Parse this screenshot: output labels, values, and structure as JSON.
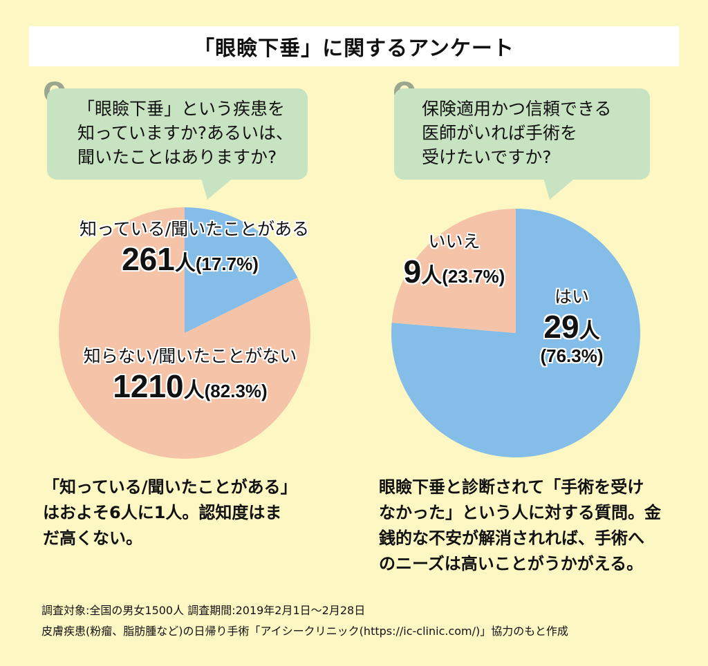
{
  "title": "「眼瞼下垂」に関するアンケート",
  "q_mark": "Q",
  "colors": {
    "pink": "#f5c4a8",
    "blue": "#84bde8",
    "bubble": "#c8e3c2",
    "background": "#fdf7c4"
  },
  "left": {
    "question": "「眼瞼下垂」という疾患を\n知っていますか?あるいは、\n聞いたことはありますか?",
    "answer_yes": {
      "caption": "知っている/聞いたことがある",
      "count": "261",
      "unit": "人",
      "percent": "(17.7%)"
    },
    "answer_no": {
      "caption": "知らない/聞いたことがない",
      "count": "1210",
      "unit": "人",
      "percent": "(82.3%)"
    },
    "note": "「知っている/聞いたことがある」\nはおよそ6人に1人。認知度はま\nだ高くない。"
  },
  "right": {
    "question": "保険適用かつ信頼できる\n医師がいれば手術を\n受けたいですか?",
    "answer_no": {
      "caption": "いいえ",
      "count": "9",
      "unit": "人",
      "percent": "(23.7%)"
    },
    "answer_yes": {
      "caption": "はい",
      "count": "29",
      "unit": "人",
      "percent": "(76.3%)"
    },
    "note": "眼瞼下垂と診断されて「手術を受け\nなかった」という人に対する質問。金\n銭的な不安が解消されれば、手術へ\nのニーズは高いことがうかがえる。"
  },
  "footer": {
    "line1": "調査対象:全国の男女1500人  調査期間:2019年2月1日〜2月28日",
    "line2": "皮膚疾患(粉瘤、脂肪腫など)の日帰り手術「アイシークリニック(https://ic-clinic.com/)」協力のもと作成"
  },
  "chart_data": [
    {
      "type": "pie",
      "title": "「眼瞼下垂」という疾患を知っていますか?あるいは、聞いたことはありますか?",
      "slices": [
        {
          "label": "知っている/聞いたことがある",
          "value": 261,
          "percent": 17.7,
          "color": "#84bde8"
        },
        {
          "label": "知らない/聞いたことがない",
          "value": 1210,
          "percent": 82.3,
          "color": "#f5c4a8"
        }
      ]
    },
    {
      "type": "pie",
      "title": "保険適用かつ信頼できる医師がいれば手術を受けたいですか?",
      "slices": [
        {
          "label": "はい",
          "value": 29,
          "percent": 76.3,
          "color": "#84bde8"
        },
        {
          "label": "いいえ",
          "value": 9,
          "percent": 23.7,
          "color": "#f5c4a8"
        }
      ]
    }
  ]
}
